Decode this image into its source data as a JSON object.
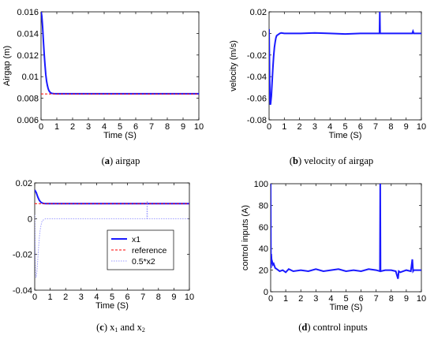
{
  "chart_data": [
    {
      "type": "line",
      "panel": "a",
      "caption_letter": "a",
      "caption_text": "airgap",
      "xlabel": "Time (S)",
      "ylabel": "Airgap (m)",
      "xlim": [
        0,
        10
      ],
      "ylim": [
        0.006,
        0.016
      ],
      "xticks": [
        "0",
        "1",
        "2",
        "3",
        "4",
        "5",
        "6",
        "7",
        "8",
        "9",
        "10"
      ],
      "yticks": [
        "0.006",
        "0.008",
        "0.01",
        "0.012",
        "0.014",
        "0.016"
      ],
      "grid": false,
      "series": [
        {
          "color": "#1a1aff",
          "style": "solid",
          "x": [
            0,
            0.05,
            0.1,
            0.15,
            0.2,
            0.25,
            0.3,
            0.35,
            0.4,
            0.45,
            0.5,
            0.6,
            0.7,
            0.8,
            1.0,
            2,
            4,
            6,
            8,
            10
          ],
          "y": [
            0.0161,
            0.0156,
            0.0146,
            0.0133,
            0.0121,
            0.0111,
            0.0102,
            0.0096,
            0.0092,
            0.0089,
            0.0087,
            0.0085,
            0.00845,
            0.00843,
            0.00842,
            0.00842,
            0.00842,
            0.00842,
            0.00842,
            0.00842
          ]
        },
        {
          "color": "#ff0000",
          "style": "dashed",
          "x": [
            0,
            10
          ],
          "y": [
            0.0084,
            0.0084
          ]
        }
      ]
    },
    {
      "type": "line",
      "panel": "b",
      "caption_letter": "b",
      "caption_text": "velocity of airgap",
      "xlabel": "Time (S)",
      "ylabel": "velocity (m/s)",
      "xlim": [
        0,
        10
      ],
      "ylim": [
        -0.08,
        0.02
      ],
      "xticks": [
        "0",
        "1",
        "2",
        "3",
        "4",
        "5",
        "6",
        "7",
        "8",
        "9",
        "10"
      ],
      "yticks": [
        "-0.08",
        "-0.06",
        "-0.04",
        "-0.02",
        "0",
        "0.02"
      ],
      "grid": false,
      "series": [
        {
          "color": "#1a1aff",
          "style": "solid",
          "x": [
            0,
            0.02,
            0.04,
            0.06,
            0.08,
            0.1,
            0.15,
            0.2,
            0.25,
            0.3,
            0.35,
            0.4,
            0.45,
            0.5,
            0.6,
            0.7,
            0.8,
            1.0,
            2,
            3,
            4,
            5,
            6,
            7,
            7.25,
            7.27,
            7.29,
            7.31,
            8,
            9,
            9.4,
            9.45,
            9.5,
            10
          ],
          "y": [
            0.004,
            -0.02,
            -0.045,
            -0.062,
            -0.066,
            -0.065,
            -0.058,
            -0.045,
            -0.032,
            -0.021,
            -0.013,
            -0.008,
            -0.004,
            -0.002,
            -0.001,
            0,
            0.0005,
            0,
            0,
            0.0005,
            0,
            -0.0005,
            0,
            0,
            0,
            0.02,
            0,
            0,
            0,
            0,
            0,
            0.002,
            0,
            0
          ]
        }
      ]
    },
    {
      "type": "line",
      "panel": "c",
      "caption_letter": "c",
      "caption_text": "x",
      "caption_sub1": "1",
      "caption_mid": " and x",
      "caption_sub2": "2",
      "xlabel": "Time (S)",
      "ylabel": "",
      "xlim": [
        0,
        10
      ],
      "ylim": [
        -0.04,
        0.02
      ],
      "xticks": [
        "0",
        "1",
        "2",
        "3",
        "4",
        "5",
        "6",
        "7",
        "8",
        "9",
        "10"
      ],
      "yticks": [
        "-0.04",
        "-0.02",
        "0",
        "0.02"
      ],
      "grid": false,
      "legend_position": "center",
      "series": [
        {
          "name": "x1",
          "color": "#1a1aff",
          "style": "solid",
          "x": [
            0,
            0.1,
            0.2,
            0.3,
            0.4,
            0.5,
            0.6,
            0.8,
            1.0,
            2,
            4,
            6,
            8,
            10
          ],
          "y": [
            0.0161,
            0.0146,
            0.0121,
            0.0102,
            0.0092,
            0.0087,
            0.0085,
            0.00843,
            0.00842,
            0.00842,
            0.00842,
            0.00842,
            0.00842,
            0.00842
          ]
        },
        {
          "name": "reference",
          "color": "#ff0000",
          "style": "dashed",
          "x": [
            0,
            10
          ],
          "y": [
            0.0084,
            0.0084
          ]
        },
        {
          "name": "0.5*x2",
          "color": "#9999ff",
          "style": "dotted",
          "x": [
            0,
            0.02,
            0.04,
            0.06,
            0.08,
            0.1,
            0.15,
            0.2,
            0.25,
            0.3,
            0.35,
            0.4,
            0.45,
            0.5,
            0.6,
            0.7,
            0.8,
            1.0,
            2,
            4,
            6,
            7.25,
            7.27,
            7.29,
            7.31,
            8,
            10
          ],
          "y": [
            0.002,
            -0.01,
            -0.0225,
            -0.031,
            -0.033,
            -0.0325,
            -0.029,
            -0.0225,
            -0.016,
            -0.0105,
            -0.0065,
            -0.004,
            -0.002,
            -0.001,
            -0.0005,
            0,
            0,
            0,
            0,
            0,
            0,
            0,
            0.01,
            0,
            0,
            0,
            0
          ]
        }
      ]
    },
    {
      "type": "line",
      "panel": "d",
      "caption_letter": "d",
      "caption_text": "control inputs",
      "xlabel": "Time (S)",
      "ylabel": "control inputs (A)",
      "xlim": [
        0,
        10
      ],
      "ylim": [
        0,
        100
      ],
      "xticks": [
        "0",
        "1",
        "2",
        "3",
        "4",
        "5",
        "6",
        "7",
        "8",
        "9",
        "10"
      ],
      "yticks": [
        "0",
        "20",
        "40",
        "60",
        "80",
        "100"
      ],
      "grid": false,
      "series": [
        {
          "color": "#1a1aff",
          "style": "solid",
          "x": [
            0,
            0.02,
            0.04,
            0.06,
            0.1,
            0.15,
            0.2,
            0.3,
            0.4,
            0.5,
            0.6,
            0.8,
            1.0,
            1.2,
            1.5,
            2,
            2.5,
            3,
            3.5,
            4,
            4.5,
            5,
            5.5,
            6,
            6.5,
            7,
            7.25,
            7.27,
            7.29,
            7.31,
            7.6,
            8,
            8.3,
            8.45,
            8.5,
            8.6,
            9,
            9.3,
            9.4,
            9.45,
            9.5,
            10
          ],
          "y": [
            100,
            22,
            35,
            30,
            28,
            25,
            26,
            22,
            21,
            20,
            19,
            20,
            18,
            21,
            19,
            20,
            19,
            21,
            19,
            20,
            21,
            19,
            20,
            19,
            21,
            20,
            19,
            100,
            20,
            19,
            20,
            20,
            19,
            12,
            19,
            18,
            20,
            19,
            30,
            19,
            20,
            20
          ]
        }
      ]
    }
  ]
}
